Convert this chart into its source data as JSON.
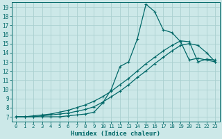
{
  "xlabel": "Humidex (Indice chaleur)",
  "bg_color": "#cce8e8",
  "grid_color": "#aad0d0",
  "line_color": "#006868",
  "xlim": [
    -0.5,
    23.5
  ],
  "ylim": [
    6.5,
    19.5
  ],
  "xticks": [
    0,
    1,
    2,
    3,
    4,
    5,
    6,
    7,
    8,
    9,
    10,
    11,
    12,
    13,
    14,
    15,
    16,
    17,
    18,
    19,
    20,
    21,
    22,
    23
  ],
  "yticks": [
    7,
    8,
    9,
    10,
    11,
    12,
    13,
    14,
    15,
    16,
    17,
    18,
    19
  ],
  "line1_x": [
    0,
    1,
    2,
    3,
    4,
    5,
    6,
    7,
    8,
    9,
    10,
    11,
    12,
    13,
    14,
    15,
    16,
    17,
    18,
    19,
    20,
    21,
    22,
    23
  ],
  "line1_y": [
    7.0,
    7.0,
    7.0,
    7.0,
    7.0,
    7.0,
    7.1,
    7.2,
    7.3,
    7.5,
    8.5,
    10.0,
    12.5,
    13.0,
    15.5,
    19.3,
    18.5,
    16.5,
    16.2,
    15.2,
    13.2,
    13.4,
    13.2,
    13.0
  ],
  "line2_x": [
    0,
    1,
    2,
    3,
    4,
    5,
    6,
    7,
    8,
    9,
    10,
    11,
    12,
    13,
    14,
    15,
    16,
    17,
    18,
    19,
    20,
    21,
    22,
    23
  ],
  "line2_y": [
    7.0,
    7.0,
    7.0,
    7.1,
    7.2,
    7.3,
    7.4,
    7.6,
    7.8,
    8.1,
    8.6,
    9.2,
    9.8,
    10.5,
    11.3,
    12.0,
    12.8,
    13.5,
    14.2,
    14.8,
    15.0,
    14.8,
    14.0,
    13.0
  ],
  "line3_x": [
    0,
    1,
    2,
    3,
    4,
    5,
    6,
    7,
    8,
    9,
    10,
    11,
    12,
    13,
    14,
    15,
    16,
    17,
    18,
    19,
    20,
    21,
    22,
    23
  ],
  "line3_y": [
    7.0,
    7.0,
    7.1,
    7.2,
    7.3,
    7.5,
    7.7,
    8.0,
    8.3,
    8.7,
    9.2,
    9.8,
    10.5,
    11.2,
    12.0,
    12.8,
    13.5,
    14.2,
    14.8,
    15.3,
    15.2,
    13.0,
    13.3,
    13.2
  ],
  "marker1": "+",
  "marker2": "+",
  "marker3": "+"
}
